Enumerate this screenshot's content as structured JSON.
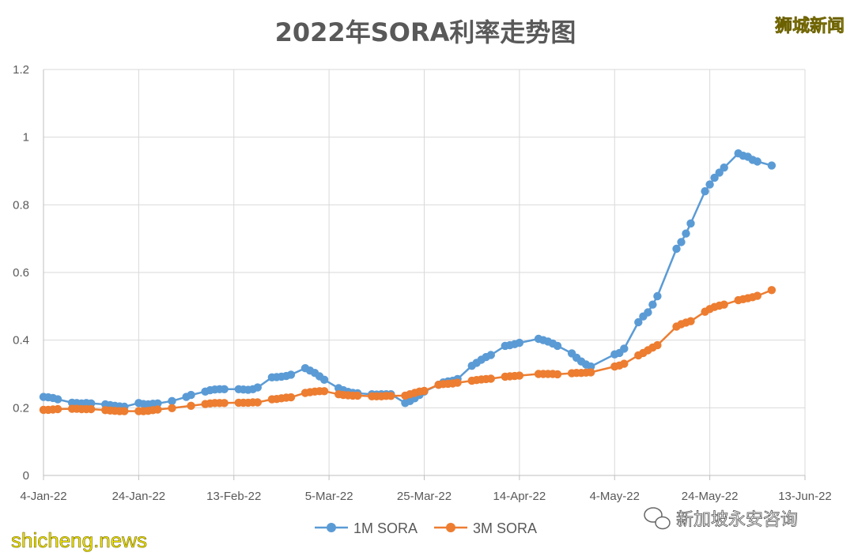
{
  "chart_data": {
    "type": "line",
    "title": "2022年SORA利率走势图",
    "xlabel": "",
    "ylabel": "",
    "x_tick_labels": [
      "4-Jan-22",
      "24-Jan-22",
      "13-Feb-22",
      "5-Mar-22",
      "25-Mar-22",
      "14-Apr-22",
      "4-May-22",
      "24-May-22",
      "13-Jun-22"
    ],
    "x_range": [
      "2022-01-04",
      "2022-06-13"
    ],
    "y_tick_labels": [
      "0",
      "0.2",
      "0.4",
      "0.6",
      "0.8",
      "1",
      "1.2"
    ],
    "ylim": [
      0,
      1.2
    ],
    "grid": true,
    "legend_position": "bottom",
    "series": [
      {
        "name": "1M SORA",
        "color": "#5b9bd5",
        "points": [
          [
            "2022-01-04",
            0.232
          ],
          [
            "2022-01-05",
            0.231
          ],
          [
            "2022-01-06",
            0.229
          ],
          [
            "2022-01-07",
            0.225
          ],
          [
            "2022-01-10",
            0.215
          ],
          [
            "2022-01-11",
            0.214
          ],
          [
            "2022-01-12",
            0.213
          ],
          [
            "2022-01-13",
            0.214
          ],
          [
            "2022-01-14",
            0.213
          ],
          [
            "2022-01-17",
            0.21
          ],
          [
            "2022-01-18",
            0.208
          ],
          [
            "2022-01-19",
            0.206
          ],
          [
            "2022-01-20",
            0.204
          ],
          [
            "2022-01-21",
            0.203
          ],
          [
            "2022-01-24",
            0.214
          ],
          [
            "2022-01-25",
            0.211
          ],
          [
            "2022-01-26",
            0.21
          ],
          [
            "2022-01-27",
            0.212
          ],
          [
            "2022-01-28",
            0.213
          ],
          [
            "2022-01-31",
            0.22
          ],
          [
            "2022-02-03",
            0.232
          ],
          [
            "2022-02-04",
            0.238
          ],
          [
            "2022-02-07",
            0.248
          ],
          [
            "2022-02-08",
            0.252
          ],
          [
            "2022-02-09",
            0.254
          ],
          [
            "2022-02-10",
            0.255
          ],
          [
            "2022-02-11",
            0.255
          ],
          [
            "2022-02-14",
            0.255
          ],
          [
            "2022-02-15",
            0.254
          ],
          [
            "2022-02-16",
            0.253
          ],
          [
            "2022-02-17",
            0.255
          ],
          [
            "2022-02-18",
            0.26
          ],
          [
            "2022-02-21",
            0.29
          ],
          [
            "2022-02-22",
            0.291
          ],
          [
            "2022-02-23",
            0.292
          ],
          [
            "2022-02-24",
            0.294
          ],
          [
            "2022-02-25",
            0.298
          ],
          [
            "2022-02-28",
            0.317
          ],
          [
            "2022-03-01",
            0.31
          ],
          [
            "2022-03-02",
            0.303
          ],
          [
            "2022-03-03",
            0.293
          ],
          [
            "2022-03-04",
            0.283
          ],
          [
            "2022-03-07",
            0.258
          ],
          [
            "2022-03-08",
            0.252
          ],
          [
            "2022-03-09",
            0.247
          ],
          [
            "2022-03-10",
            0.244
          ],
          [
            "2022-03-11",
            0.243
          ],
          [
            "2022-03-14",
            0.24
          ],
          [
            "2022-03-15",
            0.239
          ],
          [
            "2022-03-16",
            0.24
          ],
          [
            "2022-03-17",
            0.24
          ],
          [
            "2022-03-18",
            0.24
          ],
          [
            "2022-03-21",
            0.214
          ],
          [
            "2022-03-22",
            0.22
          ],
          [
            "2022-03-23",
            0.228
          ],
          [
            "2022-03-24",
            0.238
          ],
          [
            "2022-03-25",
            0.248
          ],
          [
            "2022-03-28",
            0.268
          ],
          [
            "2022-03-29",
            0.275
          ],
          [
            "2022-03-30",
            0.278
          ],
          [
            "2022-03-31",
            0.28
          ],
          [
            "2022-04-01",
            0.285
          ],
          [
            "2022-04-04",
            0.324
          ],
          [
            "2022-04-05",
            0.333
          ],
          [
            "2022-04-06",
            0.342
          ],
          [
            "2022-04-07",
            0.35
          ],
          [
            "2022-04-08",
            0.356
          ],
          [
            "2022-04-11",
            0.383
          ],
          [
            "2022-04-12",
            0.385
          ],
          [
            "2022-04-13",
            0.388
          ],
          [
            "2022-04-14",
            0.392
          ],
          [
            "2022-04-18",
            0.404
          ],
          [
            "2022-04-19",
            0.4
          ],
          [
            "2022-04-20",
            0.396
          ],
          [
            "2022-04-21",
            0.39
          ],
          [
            "2022-04-22",
            0.383
          ],
          [
            "2022-04-25",
            0.361
          ],
          [
            "2022-04-26",
            0.348
          ],
          [
            "2022-04-27",
            0.337
          ],
          [
            "2022-04-28",
            0.328
          ],
          [
            "2022-04-29",
            0.322
          ],
          [
            "2022-05-04",
            0.358
          ],
          [
            "2022-05-05",
            0.362
          ],
          [
            "2022-05-06",
            0.375
          ],
          [
            "2022-05-09",
            0.453
          ],
          [
            "2022-05-10",
            0.47
          ],
          [
            "2022-05-11",
            0.482
          ],
          [
            "2022-05-12",
            0.505
          ],
          [
            "2022-05-13",
            0.53
          ],
          [
            "2022-05-17",
            0.67
          ],
          [
            "2022-05-18",
            0.69
          ],
          [
            "2022-05-19",
            0.715
          ],
          [
            "2022-05-20",
            0.745
          ],
          [
            "2022-05-23",
            0.84
          ],
          [
            "2022-05-24",
            0.86
          ],
          [
            "2022-05-25",
            0.88
          ],
          [
            "2022-05-26",
            0.895
          ],
          [
            "2022-05-27",
            0.91
          ],
          [
            "2022-05-30",
            0.952
          ],
          [
            "2022-05-31",
            0.945
          ],
          [
            "2022-06-01",
            0.942
          ],
          [
            "2022-06-02",
            0.933
          ],
          [
            "2022-06-03",
            0.928
          ],
          [
            "2022-06-06",
            0.916
          ]
        ]
      },
      {
        "name": "3M SORA",
        "color": "#ed7d31",
        "points": [
          [
            "2022-01-04",
            0.194
          ],
          [
            "2022-01-05",
            0.194
          ],
          [
            "2022-01-06",
            0.195
          ],
          [
            "2022-01-07",
            0.196
          ],
          [
            "2022-01-10",
            0.197
          ],
          [
            "2022-01-11",
            0.197
          ],
          [
            "2022-01-12",
            0.196
          ],
          [
            "2022-01-13",
            0.196
          ],
          [
            "2022-01-14",
            0.196
          ],
          [
            "2022-01-17",
            0.193
          ],
          [
            "2022-01-18",
            0.192
          ],
          [
            "2022-01-19",
            0.191
          ],
          [
            "2022-01-20",
            0.19
          ],
          [
            "2022-01-21",
            0.19
          ],
          [
            "2022-01-24",
            0.19
          ],
          [
            "2022-01-25",
            0.19
          ],
          [
            "2022-01-26",
            0.191
          ],
          [
            "2022-01-27",
            0.193
          ],
          [
            "2022-01-28",
            0.195
          ],
          [
            "2022-01-31",
            0.199
          ],
          [
            "2022-02-04",
            0.206
          ],
          [
            "2022-02-07",
            0.211
          ],
          [
            "2022-02-08",
            0.213
          ],
          [
            "2022-02-09",
            0.214
          ],
          [
            "2022-02-10",
            0.214
          ],
          [
            "2022-02-11",
            0.214
          ],
          [
            "2022-02-14",
            0.215
          ],
          [
            "2022-02-15",
            0.215
          ],
          [
            "2022-02-16",
            0.215
          ],
          [
            "2022-02-17",
            0.216
          ],
          [
            "2022-02-18",
            0.216
          ],
          [
            "2022-02-21",
            0.225
          ],
          [
            "2022-02-22",
            0.226
          ],
          [
            "2022-02-23",
            0.228
          ],
          [
            "2022-02-24",
            0.23
          ],
          [
            "2022-02-25",
            0.231
          ],
          [
            "2022-02-28",
            0.244
          ],
          [
            "2022-03-01",
            0.246
          ],
          [
            "2022-03-02",
            0.248
          ],
          [
            "2022-03-03",
            0.249
          ],
          [
            "2022-03-04",
            0.249
          ],
          [
            "2022-03-07",
            0.24
          ],
          [
            "2022-03-08",
            0.238
          ],
          [
            "2022-03-09",
            0.237
          ],
          [
            "2022-03-10",
            0.236
          ],
          [
            "2022-03-11",
            0.236
          ],
          [
            "2022-03-14",
            0.234
          ],
          [
            "2022-03-15",
            0.234
          ],
          [
            "2022-03-16",
            0.234
          ],
          [
            "2022-03-17",
            0.235
          ],
          [
            "2022-03-18",
            0.235
          ],
          [
            "2022-03-21",
            0.236
          ],
          [
            "2022-03-22",
            0.24
          ],
          [
            "2022-03-23",
            0.244
          ],
          [
            "2022-03-24",
            0.248
          ],
          [
            "2022-03-25",
            0.25
          ],
          [
            "2022-03-28",
            0.268
          ],
          [
            "2022-03-29",
            0.27
          ],
          [
            "2022-03-30",
            0.271
          ],
          [
            "2022-03-31",
            0.272
          ],
          [
            "2022-04-01",
            0.274
          ],
          [
            "2022-04-04",
            0.28
          ],
          [
            "2022-04-05",
            0.282
          ],
          [
            "2022-04-06",
            0.284
          ],
          [
            "2022-04-07",
            0.285
          ],
          [
            "2022-04-08",
            0.286
          ],
          [
            "2022-04-11",
            0.292
          ],
          [
            "2022-04-12",
            0.293
          ],
          [
            "2022-04-13",
            0.294
          ],
          [
            "2022-04-14",
            0.295
          ],
          [
            "2022-04-18",
            0.3
          ],
          [
            "2022-04-19",
            0.3
          ],
          [
            "2022-04-20",
            0.3
          ],
          [
            "2022-04-21",
            0.3
          ],
          [
            "2022-04-22",
            0.299
          ],
          [
            "2022-04-25",
            0.302
          ],
          [
            "2022-04-26",
            0.303
          ],
          [
            "2022-04-27",
            0.303
          ],
          [
            "2022-04-28",
            0.304
          ],
          [
            "2022-04-29",
            0.305
          ],
          [
            "2022-05-04",
            0.322
          ],
          [
            "2022-05-05",
            0.325
          ],
          [
            "2022-05-06",
            0.33
          ],
          [
            "2022-05-09",
            0.355
          ],
          [
            "2022-05-10",
            0.362
          ],
          [
            "2022-05-11",
            0.37
          ],
          [
            "2022-05-12",
            0.378
          ],
          [
            "2022-05-13",
            0.385
          ],
          [
            "2022-05-17",
            0.44
          ],
          [
            "2022-05-18",
            0.447
          ],
          [
            "2022-05-19",
            0.452
          ],
          [
            "2022-05-20",
            0.456
          ],
          [
            "2022-05-23",
            0.484
          ],
          [
            "2022-05-24",
            0.492
          ],
          [
            "2022-05-25",
            0.498
          ],
          [
            "2022-05-26",
            0.502
          ],
          [
            "2022-05-27",
            0.505
          ],
          [
            "2022-05-30",
            0.518
          ],
          [
            "2022-05-31",
            0.521
          ],
          [
            "2022-06-01",
            0.524
          ],
          [
            "2022-06-02",
            0.527
          ],
          [
            "2022-06-03",
            0.531
          ],
          [
            "2022-06-06",
            0.548
          ]
        ]
      }
    ]
  },
  "watermarks": {
    "top_right": "狮城新闻",
    "bottom_left": "shicheng.news",
    "wechat_account": "新加坡永安咨询",
    "wechat_icon": "wechat-icon"
  }
}
